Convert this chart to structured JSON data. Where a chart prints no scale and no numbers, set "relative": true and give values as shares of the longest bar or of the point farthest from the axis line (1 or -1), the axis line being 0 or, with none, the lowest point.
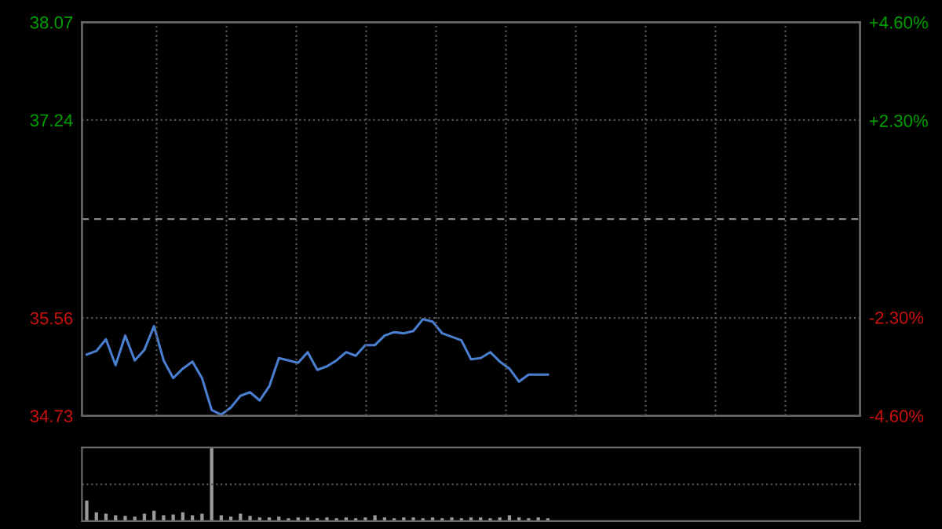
{
  "chart_data": [
    {
      "type": "line",
      "categories": [
        null,
        null,
        null,
        null,
        null,
        null,
        null,
        null,
        null,
        null,
        null,
        null,
        null,
        null,
        null,
        null,
        null,
        null,
        null,
        null,
        null,
        null,
        null,
        null,
        null,
        null,
        null,
        null,
        null,
        null,
        null,
        null,
        null,
        null,
        null,
        null,
        null,
        null,
        null,
        null,
        null,
        null,
        null,
        null,
        null,
        null,
        null,
        null,
        null,
        null,
        null,
        null,
        null,
        null,
        null,
        null,
        null,
        null,
        null,
        null,
        null,
        null,
        null,
        null,
        null,
        null,
        null,
        null,
        null,
        null,
        null,
        null,
        null,
        null,
        null,
        null,
        null,
        null,
        null,
        null,
        null
      ],
      "series": [
        {
          "color": "#4a7fd0",
          "values": [
            35.25,
            35.28,
            35.38,
            35.16,
            35.41,
            35.2,
            35.29,
            35.49,
            35.2,
            35.05,
            35.13,
            35.19,
            35.05,
            34.78,
            34.74,
            34.8,
            34.9,
            34.93,
            34.86,
            34.98,
            35.22,
            35.2,
            35.18,
            35.27,
            35.12,
            35.15,
            35.2,
            35.27,
            35.24,
            35.33,
            35.33,
            35.41,
            35.44,
            35.43,
            35.45,
            35.55,
            35.53,
            35.43,
            35.4,
            35.37,
            35.21,
            35.22,
            35.27,
            35.19,
            35.13,
            35.02,
            35.08,
            35.08,
            35.08,
            null,
            null,
            null,
            null,
            null,
            null,
            null,
            null,
            null,
            null,
            null,
            null,
            null,
            null,
            null,
            null,
            null,
            null,
            null,
            null,
            null,
            null,
            null,
            null,
            null,
            null,
            null,
            null,
            null,
            null,
            null,
            null
          ]
        }
      ],
      "ylim": [
        34.73,
        38.07
      ],
      "yticks": [
        34.73,
        35.56,
        37.24,
        38.07
      ],
      "y2lim": [
        -4.6,
        4.6
      ],
      "y2ticks": [
        {
          "value": -4.6,
          "label": "-4.60%"
        },
        {
          "value": -2.3,
          "label": "-2.30%"
        },
        {
          "value": 2.3,
          "label": "+2.30%"
        },
        {
          "value": 4.6,
          "label": "+4.60%"
        }
      ],
      "ref_lines": [
        {
          "axis": "y",
          "value": 36.4,
          "color": "#888888",
          "line_style": "dashed"
        }
      ],
      "grid": true,
      "legend": false,
      "marker": "none",
      "line_style": "solid"
    },
    {
      "type": "bar",
      "relative": true,
      "categories": [
        null,
        null,
        null,
        null,
        null,
        null,
        null,
        null,
        null,
        null,
        null,
        null,
        null,
        null,
        null,
        null,
        null,
        null,
        null,
        null,
        null,
        null,
        null,
        null,
        null,
        null,
        null,
        null,
        null,
        null,
        null,
        null,
        null,
        null,
        null,
        null,
        null,
        null,
        null,
        null,
        null,
        null,
        null,
        null,
        null,
        null,
        null,
        null,
        null,
        null,
        null,
        null,
        null,
        null,
        null,
        null,
        null,
        null,
        null,
        null,
        null,
        null,
        null,
        null,
        null,
        null,
        null,
        null,
        null,
        null,
        null,
        null,
        null,
        null,
        null,
        null,
        null,
        null,
        null,
        null,
        null
      ],
      "series": [
        {
          "color": "#9a9a9a",
          "values": [
            0.28,
            0.12,
            0.1,
            0.08,
            0.07,
            0.06,
            0.1,
            0.14,
            0.08,
            0.09,
            0.12,
            0.08,
            0.1,
            1.0,
            0.08,
            0.06,
            0.1,
            0.07,
            0.05,
            0.05,
            0.06,
            0.04,
            0.05,
            0.05,
            0.04,
            0.05,
            0.04,
            0.05,
            0.04,
            0.05,
            0.08,
            0.05,
            0.04,
            0.05,
            0.05,
            0.04,
            0.05,
            0.04,
            0.05,
            0.04,
            0.05,
            0.05,
            0.04,
            0.05,
            0.08,
            0.05,
            0.04,
            0.05,
            0.04,
            null,
            null,
            null,
            null,
            null,
            null,
            null,
            null,
            null,
            null,
            null,
            null,
            null,
            null,
            null,
            null,
            null,
            null,
            null,
            null,
            null,
            null,
            null,
            null,
            null,
            null,
            null,
            null,
            null,
            null,
            null,
            null
          ]
        }
      ],
      "ref_lines": [
        {
          "axis": "y",
          "value": 0.5,
          "color": "#555555",
          "line_style": "dotted"
        }
      ],
      "legend": false
    }
  ]
}
